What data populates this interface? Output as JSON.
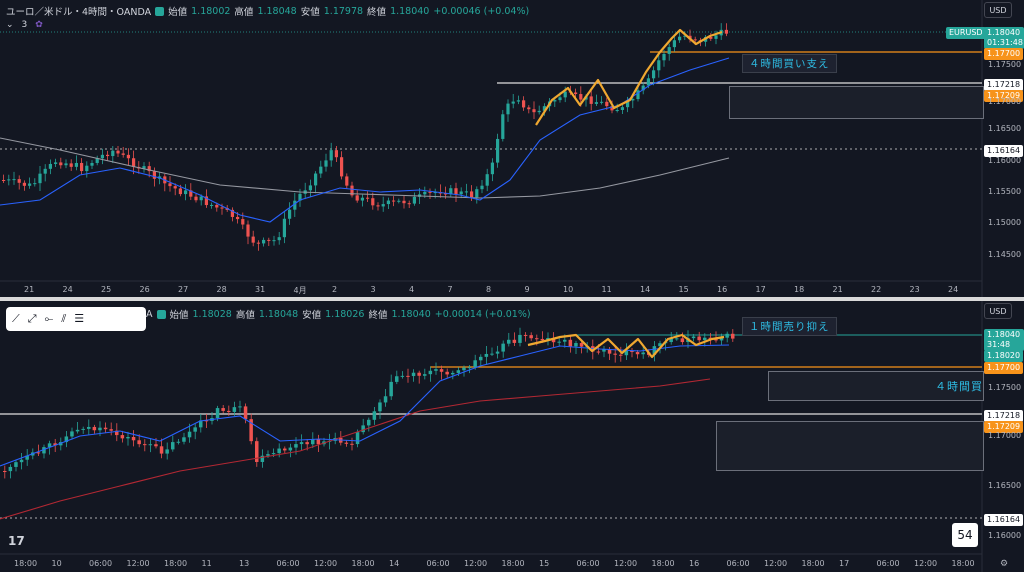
{
  "top": {
    "title": "ユーロ／米ドル・4時間・OANDA",
    "open_label": "始値",
    "open": "1.18002",
    "high_label": "高値",
    "high": "1.18048",
    "low_label": "安値",
    "low": "1.17978",
    "close_label": "終値",
    "close": "1.18040",
    "change": "+0.00046 (+0.04%)",
    "indicator_count": "3",
    "currency": "USD",
    "symbol_badge": "EURUSD",
    "price_badge": "1.18040",
    "countdown": "01:31:48",
    "support_price": "1.17700",
    "level_upper": "1.17218",
    "level_lower": "1.17209",
    "dotted_level": "1.16164",
    "note": "４時間買い支え",
    "price_ticks": [
      "1.17500",
      "1.17000",
      "1.16500",
      "1.16000",
      "1.15500",
      "1.15000",
      "1.14500"
    ],
    "time_ticks": [
      "21",
      "24",
      "25",
      "26",
      "27",
      "28",
      "31",
      "4月",
      "2",
      "3",
      "4",
      "7",
      "8",
      "9",
      "10",
      "11",
      "14",
      "15",
      "16",
      "17",
      "18",
      "21",
      "22",
      "23",
      "24"
    ]
  },
  "bottom": {
    "symbol_suffix": "A",
    "open_label": "始値",
    "open": "1.18028",
    "high_label": "高値",
    "high": "1.18048",
    "low_label": "安値",
    "low": "1.18026",
    "close_label": "終値",
    "close": "1.18040",
    "change": "+0.00014 (+0.01%)",
    "currency": "USD",
    "price_badge": "1.18040",
    "countdown": "31:48",
    "resistance_price": "1.18020",
    "support_price": "1.17700",
    "level_upper": "1.17218",
    "level_lower": "1.17209",
    "dotted_level": "1.16164",
    "note_top": "１時間売り抑え",
    "note_mid": "４時間買",
    "page_number": "54",
    "price_ticks": [
      "1.17500",
      "1.17000",
      "1.16500",
      "1.16000"
    ],
    "time_ticks": [
      "18:00",
      "10",
      "06:00",
      "12:00",
      "18:00",
      "11",
      "13",
      "06:00",
      "12:00",
      "18:00",
      "14",
      "06:00",
      "12:00",
      "18:00",
      "15",
      "06:00",
      "12:00",
      "18:00",
      "16",
      "06:00",
      "12:00",
      "18:00",
      "17",
      "06:00",
      "12:00",
      "18:00"
    ],
    "toolbar_icons": [
      "trend-line-icon",
      "ray-icon",
      "horizontal-ray-icon",
      "parallel-channel-icon",
      "fib-icon"
    ]
  },
  "colors": {
    "up": "#26a69a",
    "down": "#ef5350",
    "ma_blue": "#2962ff",
    "ma_gray": "#9598a1",
    "ma_red": "#b22833",
    "zigzag": "#f0a830",
    "support": "#f7931a",
    "level": "#e0e0e0"
  }
}
